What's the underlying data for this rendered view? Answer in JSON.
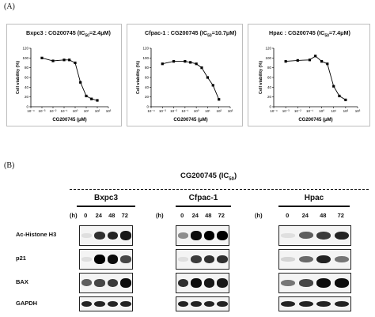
{
  "panel_a_label": "(A)",
  "panel_b_label": "(B)",
  "charts": [
    {
      "title_prefix": "Bxpc3 : CG200745 (IC",
      "title_sub": "50",
      "title_suffix": "=2.4μM)"
    },
    {
      "title_prefix": "Cfpac-1 : CG200745 (IC",
      "title_sub": "50",
      "title_suffix": "=10.7μM)"
    },
    {
      "title_prefix": "Hpac : CG200745 (IC",
      "title_sub": "50",
      "title_suffix": "=7.4μM)"
    }
  ],
  "chart_data": [
    {
      "type": "line",
      "title": "Bxpc3 : CG200745 (IC50=2.4μM)",
      "xlabel": "CG200745 (μM)",
      "ylabel": "Cell viability (%)",
      "x_scale": "log",
      "xlim": [
        0.0001,
        1000
      ],
      "ylim": [
        0,
        120
      ],
      "x_tick_labels": [
        "10⁻⁴",
        "10⁻³",
        "10⁻²",
        "10⁻¹",
        "10⁰",
        "10¹",
        "10²",
        "10³"
      ],
      "y_tick_labels": [
        "0",
        "20",
        "40",
        "60",
        "80",
        "100",
        "120"
      ],
      "series": [
        {
          "x": [
            0.001,
            0.01,
            0.1,
            0.3,
            1,
            3,
            10,
            30,
            100
          ],
          "y": [
            100,
            94,
            96,
            96,
            90,
            50,
            22,
            16,
            13
          ]
        }
      ]
    },
    {
      "type": "line",
      "title": "Cfpac-1 : CG200745 (IC50=10.7μM)",
      "xlabel": "CG200745 (μM)",
      "ylabel": "Cell viability (%)",
      "x_scale": "log",
      "xlim": [
        0.0001,
        1000
      ],
      "ylim": [
        0,
        120
      ],
      "x_tick_labels": [
        "10⁻⁴",
        "10⁻³",
        "10⁻²",
        "10⁻¹",
        "10⁰",
        "10¹",
        "10²",
        "10³"
      ],
      "y_tick_labels": [
        "0",
        "20",
        "40",
        "60",
        "80",
        "100",
        "120"
      ],
      "series": [
        {
          "x": [
            0.001,
            0.01,
            0.1,
            0.3,
            1,
            3,
            10,
            30,
            100
          ],
          "y": [
            88,
            93,
            93,
            91,
            88,
            80,
            60,
            44,
            15
          ]
        }
      ]
    },
    {
      "type": "line",
      "title": "Hpac : CG200745 (IC50=7.4μM)",
      "xlabel": "CG200745 (μM)",
      "ylabel": "Cell viability (%)",
      "x_scale": "log",
      "xlim": [
        0.0001,
        1000
      ],
      "ylim": [
        0,
        120
      ],
      "x_tick_labels": [
        "10⁻⁴",
        "10⁻³",
        "10⁻²",
        "10⁻¹",
        "10⁰",
        "10¹",
        "10²",
        "10³"
      ],
      "y_tick_labels": [
        "0",
        "20",
        "40",
        "60",
        "80",
        "100",
        "120"
      ],
      "series": [
        {
          "x": [
            0.001,
            0.01,
            0.1,
            0.3,
            1,
            3,
            10,
            30,
            100
          ],
          "y": [
            93,
            95,
            96,
            104,
            93,
            88,
            42,
            22,
            14
          ]
        }
      ]
    }
  ],
  "western": {
    "header_prefix": "CG200745 (IC",
    "header_sub": "50",
    "header_suffix": ")",
    "cell_lines": [
      "Bxpc3",
      "Cfpac-1",
      "Hpac"
    ],
    "hours_label": "(h)",
    "timepoints": [
      "0",
      "24",
      "48",
      "72"
    ],
    "proteins": [
      "Ac-Histone H3",
      "p21",
      "BAX",
      "GAPDH"
    ],
    "band_intensity": [
      [
        [
          0.05,
          0.8,
          0.85,
          0.9
        ],
        [
          0.4,
          0.95,
          1.0,
          1.0
        ],
        [
          0.05,
          0.6,
          0.75,
          0.85
        ]
      ],
      [
        [
          0.05,
          1.0,
          0.95,
          0.7
        ],
        [
          0.05,
          0.75,
          0.8,
          0.8
        ],
        [
          0.1,
          0.55,
          0.85,
          0.5
        ]
      ],
      [
        [
          0.6,
          0.7,
          0.75,
          0.95
        ],
        [
          0.8,
          0.95,
          0.9,
          0.9
        ],
        [
          0.5,
          0.7,
          0.95,
          0.95
        ]
      ],
      [
        [
          0.85,
          0.85,
          0.85,
          0.85
        ],
        [
          0.85,
          0.85,
          0.85,
          0.85
        ],
        [
          0.85,
          0.85,
          0.85,
          0.85
        ]
      ]
    ]
  }
}
